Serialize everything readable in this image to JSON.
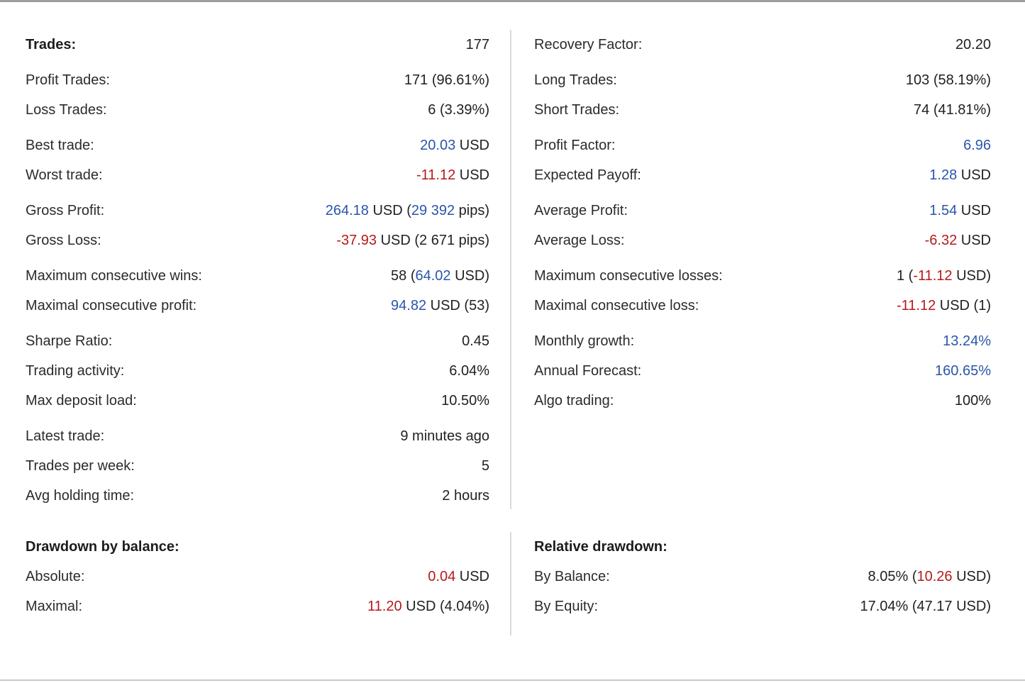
{
  "theme": {
    "blue": "#2a56a8",
    "red": "#b51a1a",
    "text": "#212121",
    "divider": "#d9dadc",
    "background": "#ffffff"
  },
  "sections": {
    "main_left": {
      "groups": [
        [
          {
            "label": "Trades:",
            "bold": true,
            "value": [
              {
                "t": "177"
              }
            ]
          }
        ],
        [
          {
            "label": "Profit Trades:",
            "value": [
              {
                "t": "171 (96.61%)"
              }
            ]
          },
          {
            "label": "Loss Trades:",
            "value": [
              {
                "t": "6 (3.39%)"
              }
            ]
          }
        ],
        [
          {
            "label": "Best trade:",
            "value": [
              {
                "t": "20.03",
                "c": "blue"
              },
              {
                "t": " USD"
              }
            ]
          },
          {
            "label": "Worst trade:",
            "value": [
              {
                "t": "-11.12",
                "c": "red"
              },
              {
                "t": " USD"
              }
            ]
          }
        ],
        [
          {
            "label": "Gross Profit:",
            "value": [
              {
                "t": "264.18",
                "c": "blue"
              },
              {
                "t": " USD ("
              },
              {
                "t": "29 392",
                "c": "blue"
              },
              {
                "t": " pips)"
              }
            ]
          },
          {
            "label": "Gross Loss:",
            "value": [
              {
                "t": "-37.93",
                "c": "red"
              },
              {
                "t": " USD (2 671 pips)"
              }
            ]
          }
        ],
        [
          {
            "label": "Maximum consecutive wins:",
            "value": [
              {
                "t": "58 ("
              },
              {
                "t": "64.02",
                "c": "blue"
              },
              {
                "t": " USD)"
              }
            ]
          },
          {
            "label": "Maximal consecutive profit:",
            "value": [
              {
                "t": "94.82",
                "c": "blue"
              },
              {
                "t": " USD (53)"
              }
            ]
          }
        ],
        [
          {
            "label": "Sharpe Ratio:",
            "value": [
              {
                "t": "0.45"
              }
            ]
          },
          {
            "label": "Trading activity:",
            "value": [
              {
                "t": "6.04%"
              }
            ]
          },
          {
            "label": "Max deposit load:",
            "value": [
              {
                "t": "10.50%"
              }
            ]
          }
        ],
        [
          {
            "label": "Latest trade:",
            "value": [
              {
                "t": "9 minutes ago"
              }
            ]
          },
          {
            "label": "Trades per week:",
            "value": [
              {
                "t": "5"
              }
            ]
          },
          {
            "label": "Avg holding time:",
            "value": [
              {
                "t": "2 hours"
              }
            ]
          }
        ]
      ]
    },
    "main_right": {
      "groups": [
        [
          {
            "label": "Recovery Factor:",
            "value": [
              {
                "t": "20.20"
              }
            ]
          }
        ],
        [
          {
            "label": "Long Trades:",
            "value": [
              {
                "t": "103 (58.19%)"
              }
            ]
          },
          {
            "label": "Short Trades:",
            "value": [
              {
                "t": "74 (41.81%)"
              }
            ]
          }
        ],
        [
          {
            "label": "Profit Factor:",
            "value": [
              {
                "t": "6.96",
                "c": "blue"
              }
            ]
          },
          {
            "label": "Expected Payoff:",
            "value": [
              {
                "t": "1.28",
                "c": "blue"
              },
              {
                "t": " USD"
              }
            ]
          }
        ],
        [
          {
            "label": "Average Profit:",
            "value": [
              {
                "t": "1.54",
                "c": "blue"
              },
              {
                "t": " USD"
              }
            ]
          },
          {
            "label": "Average Loss:",
            "value": [
              {
                "t": "-6.32",
                "c": "red"
              },
              {
                "t": " USD"
              }
            ]
          }
        ],
        [
          {
            "label": "Maximum consecutive losses:",
            "value": [
              {
                "t": "1 ("
              },
              {
                "t": "-11.12",
                "c": "red"
              },
              {
                "t": " USD)"
              }
            ]
          },
          {
            "label": "Maximal consecutive loss:",
            "value": [
              {
                "t": "-11.12",
                "c": "red"
              },
              {
                "t": " USD (1)"
              }
            ]
          }
        ],
        [
          {
            "label": "Monthly growth:",
            "value": [
              {
                "t": "13.24%",
                "c": "blue"
              }
            ]
          },
          {
            "label": "Annual Forecast:",
            "value": [
              {
                "t": "160.65%",
                "c": "blue"
              }
            ]
          },
          {
            "label": "Algo trading:",
            "value": [
              {
                "t": "100%"
              }
            ]
          }
        ]
      ]
    },
    "drawdown_left": {
      "groups": [
        [
          {
            "label": "Drawdown by balance:",
            "bold": true,
            "value": []
          },
          {
            "label": "Absolute:",
            "value": [
              {
                "t": "0.04",
                "c": "red"
              },
              {
                "t": " USD"
              }
            ]
          },
          {
            "label": "Maximal:",
            "value": [
              {
                "t": "11.20",
                "c": "red"
              },
              {
                "t": " USD (4.04%)"
              }
            ]
          }
        ]
      ]
    },
    "drawdown_right": {
      "groups": [
        [
          {
            "label": "Relative drawdown:",
            "bold": true,
            "value": []
          },
          {
            "label": "By Balance:",
            "value": [
              {
                "t": "8.05% ("
              },
              {
                "t": "10.26",
                "c": "red"
              },
              {
                "t": " USD)"
              }
            ]
          },
          {
            "label": "By Equity:",
            "value": [
              {
                "t": "17.04% (47.17 USD)"
              }
            ]
          }
        ]
      ]
    }
  }
}
